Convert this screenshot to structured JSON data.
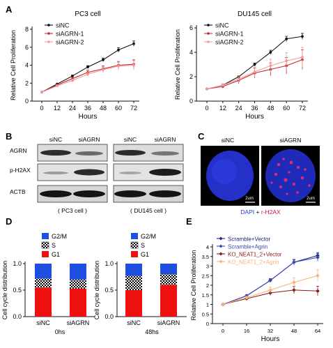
{
  "panels": {
    "A": "A",
    "B": "B",
    "C": "C",
    "D": "D",
    "E": "E"
  },
  "colors": {
    "siNC": "#111111",
    "siAGRN1": "#c62828",
    "siAGRN2": "#ef9a9a",
    "scramble_vector": "#1a237e",
    "scramble_agrin": "#3949ab",
    "ko_vector": "#8b1a1a",
    "ko_agrin": "#f5b27a",
    "g2m": "#1f4fe0",
    "g1": "#ee1111"
  },
  "chart_data": [
    {
      "id": "pc3",
      "type": "line",
      "title": "PC3 cell",
      "xlabel": "Hours",
      "ylabel": "Relative Cell Proliferation",
      "x": [
        0,
        12,
        24,
        36,
        48,
        60,
        72
      ],
      "ylim": [
        0,
        8
      ],
      "yticks": [
        0,
        2,
        4,
        6,
        8
      ],
      "series": [
        {
          "name": "siNC",
          "values": [
            1.0,
            1.9,
            2.8,
            3.8,
            4.6,
            5.7,
            6.4
          ]
        },
        {
          "name": "siAGRN-1",
          "values": [
            1.0,
            1.8,
            2.5,
            3.2,
            3.6,
            4.0,
            4.1
          ]
        },
        {
          "name": "siAGRN-2",
          "values": [
            1.0,
            1.7,
            2.3,
            3.0,
            3.5,
            3.9,
            4.0
          ]
        }
      ]
    },
    {
      "id": "du145",
      "type": "line",
      "title": "DU145 cell",
      "xlabel": "Hours",
      "ylabel": "Relative Cell Proliferation",
      "x": [
        0,
        12,
        24,
        36,
        48,
        60,
        72
      ],
      "ylim": [
        0,
        6
      ],
      "yticks": [
        0,
        2,
        4,
        6
      ],
      "series": [
        {
          "name": "siNC",
          "values": [
            1.0,
            1.3,
            2.0,
            3.0,
            4.0,
            5.1,
            5.3
          ]
        },
        {
          "name": "siAGRN-1",
          "values": [
            1.0,
            1.2,
            1.7,
            2.3,
            2.6,
            2.9,
            3.4
          ]
        },
        {
          "name": "siAGRN-2",
          "values": [
            1.0,
            1.3,
            1.8,
            2.4,
            2.9,
            3.3,
            3.6
          ]
        }
      ]
    },
    {
      "id": "cc0",
      "type": "bar",
      "ylabel": "Cell cycle distribution",
      "xlabel": "0hs",
      "categories": [
        "siNC",
        "siAGRN"
      ],
      "ylim": [
        0,
        1.0
      ],
      "yticks": [
        0,
        0.5,
        1.0
      ],
      "series": [
        {
          "name": "G1",
          "values": [
            0.55,
            0.53
          ]
        },
        {
          "name": "S",
          "values": [
            0.17,
            0.17
          ]
        },
        {
          "name": "G2/M",
          "values": [
            0.28,
            0.3
          ]
        }
      ]
    },
    {
      "id": "cc48",
      "type": "bar",
      "ylabel": "Cell cycle distribution",
      "xlabel": "48hs",
      "categories": [
        "siNC",
        "siAGRN"
      ],
      "ylim": [
        0,
        1.0
      ],
      "yticks": [
        0,
        0.5,
        1.0
      ],
      "series": [
        {
          "name": "G1",
          "values": [
            0.5,
            0.6
          ]
        },
        {
          "name": "S",
          "values": [
            0.27,
            0.2
          ]
        },
        {
          "name": "G2/M",
          "values": [
            0.23,
            0.2
          ]
        }
      ]
    },
    {
      "id": "rescue",
      "type": "line",
      "xlabel": "Hours",
      "ylabel": "Relative Cell Proliferation",
      "x": [
        0,
        16,
        32,
        48,
        64
      ],
      "ylim": [
        0,
        4
      ],
      "yticks": [
        0,
        0.5,
        1,
        1.5,
        2,
        2.5,
        3,
        3.5,
        4
      ],
      "series": [
        {
          "name": "Scramble+Vector",
          "values": [
            1.0,
            1.45,
            2.25,
            3.2,
            3.55
          ]
        },
        {
          "name": "Scramble+Agrin",
          "values": [
            1.0,
            1.45,
            2.25,
            3.2,
            3.45
          ]
        },
        {
          "name": "KO_NEAT1_2+Vector",
          "values": [
            1.0,
            1.3,
            1.6,
            1.75,
            1.7
          ]
        },
        {
          "name": "KO_NEAT1_2+Agrin",
          "values": [
            1.0,
            1.35,
            1.75,
            2.15,
            2.5
          ]
        }
      ]
    }
  ],
  "blots": {
    "rows": [
      "AGRN",
      "p-H2AX",
      "ACTB"
    ],
    "cols": [
      "siNC",
      "siAGRN"
    ],
    "pc3_caption": "( PC3 cell )",
    "du145_caption": "( DU145 cell )"
  },
  "cells": {
    "cols": [
      "siNC",
      "siAGRN"
    ],
    "scale": "2um",
    "dapi": "DAPI",
    "sep": " + ",
    "rh2ax": "r-H2AX"
  }
}
